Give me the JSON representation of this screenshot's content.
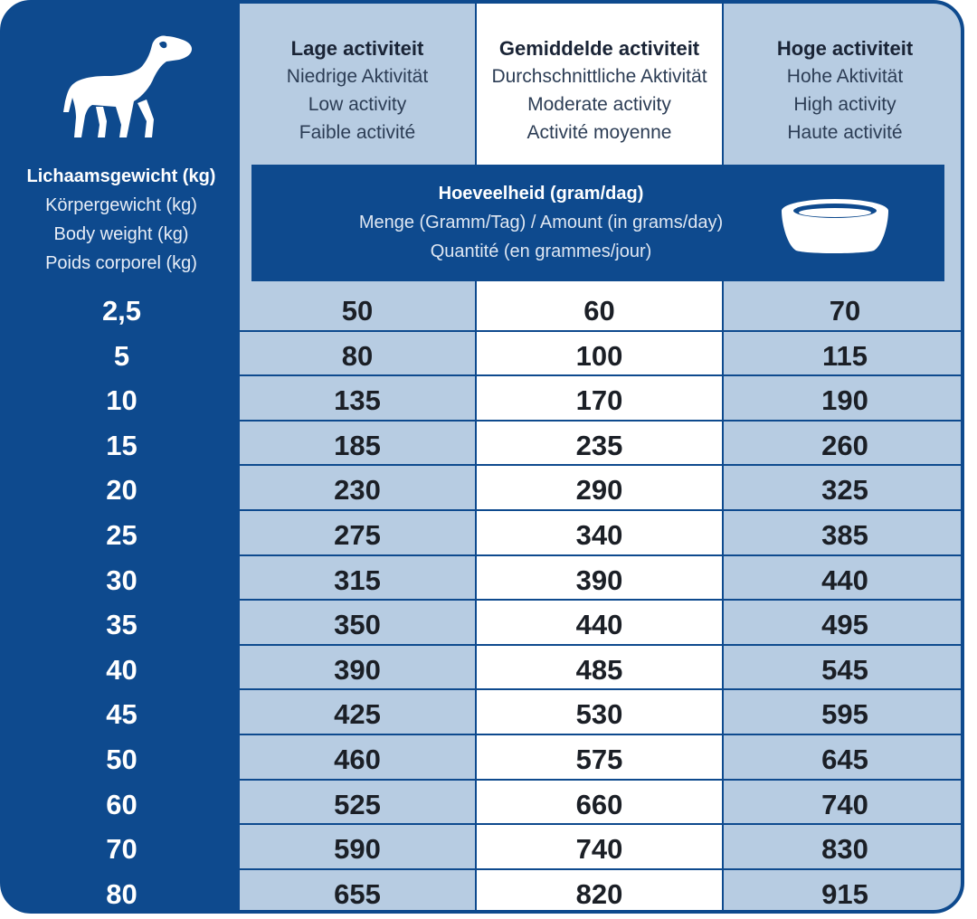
{
  "columns": {
    "low": {
      "title": "Lage activiteit",
      "de": "Niedrige Aktivität",
      "en": "Low activity",
      "fr": "Faible activité"
    },
    "moderate": {
      "title": "Gemiddelde activiteit",
      "de": "Durchschnittliche Aktivität",
      "en": "Moderate activity",
      "fr": "Activité moyenne"
    },
    "high": {
      "title": "Hoge activiteit",
      "de": "Hohe Aktivität",
      "en": "High activity",
      "fr": "Haute activité"
    }
  },
  "weight_header": {
    "nl": "Lichaamsgewicht (kg)",
    "de": "Körpergewicht (kg)",
    "en": "Body weight (kg)",
    "fr": "Poids corporel (kg)"
  },
  "amount_header": {
    "nl": "Hoeveelheid (gram/dag)",
    "de_en": "Menge (Gramm/Tag) / Amount (in grams/day)",
    "fr": "Quantité (en grammes/jour)"
  },
  "icons": {
    "dog": "dog-icon",
    "bowl": "food-bowl-icon"
  },
  "colors": {
    "blue": "#0e4a8e",
    "light": "#b7cce2",
    "white": "#ffffff"
  },
  "rows": [
    {
      "weight": "2,5",
      "low": "50",
      "moderate": "60",
      "high": "70"
    },
    {
      "weight": "5",
      "low": "80",
      "moderate": "100",
      "high": "115"
    },
    {
      "weight": "10",
      "low": "135",
      "moderate": "170",
      "high": "190"
    },
    {
      "weight": "15",
      "low": "185",
      "moderate": "235",
      "high": "260"
    },
    {
      "weight": "20",
      "low": "230",
      "moderate": "290",
      "high": "325"
    },
    {
      "weight": "25",
      "low": "275",
      "moderate": "340",
      "high": "385"
    },
    {
      "weight": "30",
      "low": "315",
      "moderate": "390",
      "high": "440"
    },
    {
      "weight": "35",
      "low": "350",
      "moderate": "440",
      "high": "495"
    },
    {
      "weight": "40",
      "low": "390",
      "moderate": "485",
      "high": "545"
    },
    {
      "weight": "45",
      "low": "425",
      "moderate": "530",
      "high": "595"
    },
    {
      "weight": "50",
      "low": "460",
      "moderate": "575",
      "high": "645"
    },
    {
      "weight": "60",
      "low": "525",
      "moderate": "660",
      "high": "740"
    },
    {
      "weight": "70",
      "low": "590",
      "moderate": "740",
      "high": "830"
    },
    {
      "weight": "80",
      "low": "655",
      "moderate": "820",
      "high": "915"
    }
  ]
}
